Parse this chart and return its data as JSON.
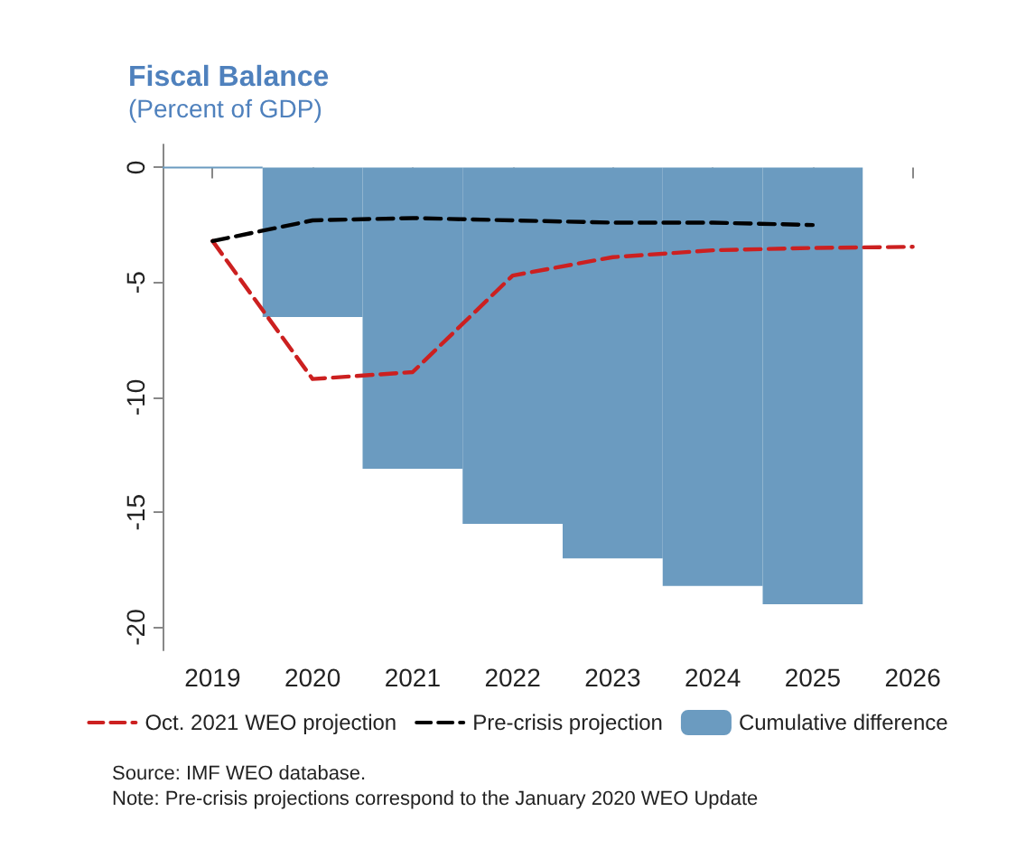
{
  "chart_data": {
    "type": "bar",
    "title": "Fiscal Balance",
    "subtitle": "(Percent of GDP)",
    "categories": [
      "2019",
      "2020",
      "2021",
      "2022",
      "2023",
      "2024",
      "2025",
      "2026"
    ],
    "series": [
      {
        "name": "Oct. 2021 WEO projection",
        "type": "line",
        "color": "#cc2020",
        "line_style": "dashed",
        "values": [
          -3.2,
          -9.2,
          -8.9,
          -4.7,
          -3.9,
          -3.6,
          -3.5,
          -3.45
        ]
      },
      {
        "name": "Pre-crisis projection",
        "type": "line",
        "color": "#000000",
        "line_style": "dashed",
        "values": [
          -3.2,
          -2.3,
          -2.2,
          -2.3,
          -2.4,
          -2.4,
          -2.5,
          null
        ]
      },
      {
        "name": "Cumulative difference",
        "color": "#6b9bc0",
        "values": [
          0,
          -6.5,
          -13.1,
          -15.5,
          -17.0,
          -18.2,
          -19.0,
          null
        ]
      }
    ],
    "ylim": [
      -21,
      1
    ],
    "yticks": [
      0,
      -5,
      -10,
      -15,
      -20
    ],
    "grid": false,
    "legend": "bottom",
    "marker": "none",
    "annotations": [
      "Source: IMF WEO database.",
      "Note: Pre-crisis projections correspond to the January 2020 WEO Update"
    ]
  }
}
